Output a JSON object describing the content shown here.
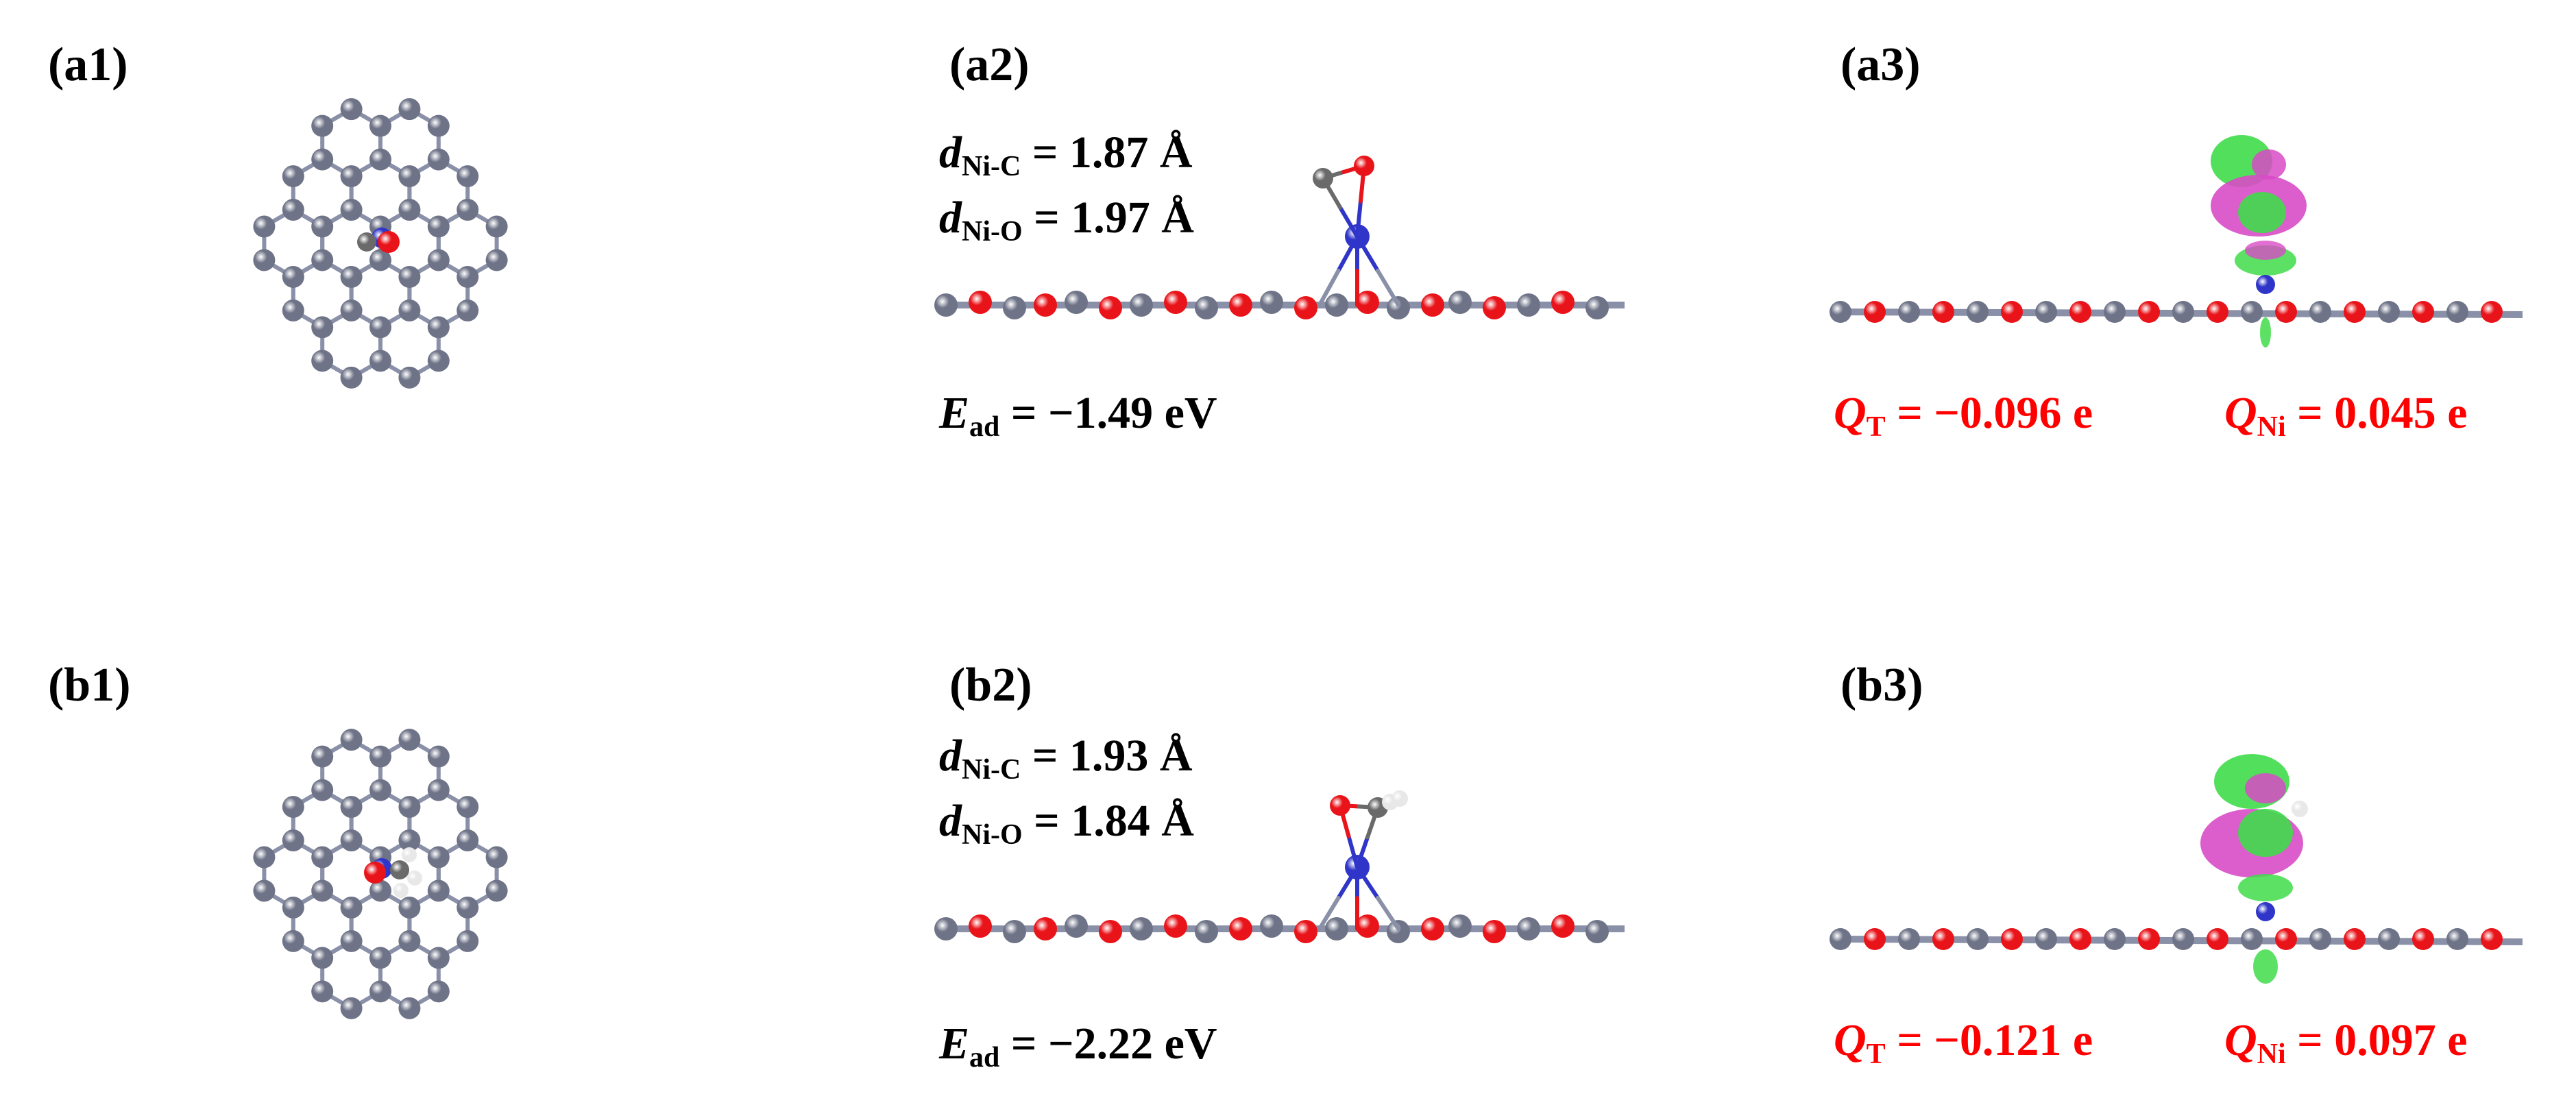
{
  "panels": {
    "a1": {
      "label": "(a1)"
    },
    "a2": {
      "label": "(a2)",
      "d_ni_c": {
        "symbol": "d",
        "sub": "Ni-C",
        "value": "= 1.87 Å"
      },
      "d_ni_o": {
        "symbol": "d",
        "sub": "Ni-O",
        "value": "= 1.97 Å"
      },
      "e_ad": {
        "symbol": "E",
        "sub": "ad",
        "value": "= −1.49 eV"
      }
    },
    "a3": {
      "label": "(a3)",
      "q_t": {
        "symbol": "Q",
        "sub": "T",
        "value": "= −0.096 e"
      },
      "q_ni": {
        "symbol": "Q",
        "sub": "Ni",
        "value": "= 0.045 e"
      }
    },
    "b1": {
      "label": "(b1)"
    },
    "b2": {
      "label": "(b2)",
      "d_ni_c": {
        "symbol": "d",
        "sub": "Ni-C",
        "value": "= 1.93 Å"
      },
      "d_ni_o": {
        "symbol": "d",
        "sub": "Ni-O",
        "value": "= 1.84 Å"
      },
      "e_ad": {
        "symbol": "E",
        "sub": "ad",
        "value": "= −2.22 eV"
      }
    },
    "b3": {
      "label": "(b3)",
      "q_t": {
        "symbol": "Q",
        "sub": "T",
        "value": "= −0.121 e"
      },
      "q_ni": {
        "symbol": "Q",
        "sub": "Ni",
        "value": "= 0.097 e"
      }
    }
  },
  "colors": {
    "carbon": "#6e7387",
    "oxygen": "#e8141a",
    "nickel": "#2f35c8",
    "hydrogen": "#e8e8e8",
    "adsorbate_c": "#6a6a6a",
    "charge_gain": "#3fdc4a",
    "charge_loss": "#d84bc6",
    "charge_text": "#ff0000"
  },
  "icons": [
    "ball-and-stick-atom",
    "charge-density-isosurface"
  ]
}
